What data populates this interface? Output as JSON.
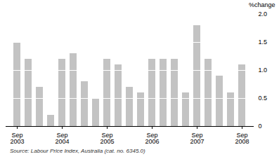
{
  "chart_data": {
    "type": "bar",
    "categories": [
      "Sep 2003",
      null,
      null,
      null,
      "Sep 2004",
      null,
      null,
      null,
      "Sep 2005",
      null,
      null,
      null,
      "Sep 2006",
      null,
      null,
      null,
      "Sep 2007",
      null,
      null,
      null,
      "Sep 2008"
    ],
    "values": [
      1.5,
      1.2,
      0.7,
      0.2,
      1.2,
      1.3,
      0.8,
      0.5,
      1.2,
      1.1,
      0.7,
      0.6,
      1.2,
      1.2,
      1.2,
      0.6,
      1.8,
      1.2,
      0.9,
      0.6,
      1.1
    ],
    "color": "#c3c3c3",
    "y_label": "%change",
    "ylim": [
      0,
      2.0
    ],
    "yticks": [
      0,
      0.5,
      {
        "value": 1.0,
        "label": "1.0"
      },
      1.5,
      {
        "value": 2.0,
        "label": "2.0"
      }
    ],
    "grid": true,
    "caption": "Source: Labour Price Index, Australia (cat. no. 6345.0)"
  }
}
